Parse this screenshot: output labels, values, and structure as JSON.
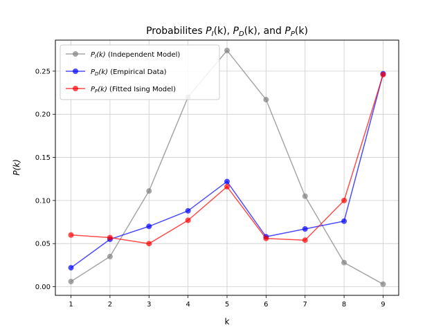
{
  "chart_data": {
    "type": "line",
    "title": "Probabilites P_I(k), P_D(k), and P_P(k)",
    "title_parts": {
      "prefix": "Probabilites ",
      "p1_sub": "I",
      "p1_suffix": "(k), ",
      "p2_sub": "D",
      "p2_suffix": "(k), and ",
      "p3_sub": "P",
      "p3_suffix": "(k)"
    },
    "xlabel": "k",
    "ylabel": "P(k)",
    "x": [
      1,
      2,
      3,
      4,
      5,
      6,
      7,
      8,
      9
    ],
    "xlim": [
      0.6,
      9.4
    ],
    "ylim": [
      -0.01,
      0.286
    ],
    "yticks": [
      0.0,
      0.05,
      0.1,
      0.15,
      0.2,
      0.25
    ],
    "ytick_labels": [
      "0.00",
      "0.05",
      "0.10",
      "0.15",
      "0.20",
      "0.25"
    ],
    "grid": true,
    "legend_position": "upper-left",
    "series": [
      {
        "name": "P_I(k) (Independent Model)",
        "label_sub": "I",
        "label_rest": " (Independent Model)",
        "color": "#808080",
        "values": [
          0.006,
          0.035,
          0.111,
          0.22,
          0.274,
          0.217,
          0.105,
          0.028,
          0.003
        ]
      },
      {
        "name": "P_D(k) (Empirical Data)",
        "label_sub": "D",
        "label_rest": " (Empirical Data)",
        "color": "#0000ff",
        "values": [
          0.022,
          0.055,
          0.07,
          0.088,
          0.122,
          0.058,
          0.067,
          0.076,
          0.247
        ]
      },
      {
        "name": "P_P(k) (Fitted Ising Model)",
        "label_sub": "P",
        "label_rest": " (Fitted Ising Model)",
        "color": "#ff0000",
        "values": [
          0.06,
          0.057,
          0.05,
          0.077,
          0.116,
          0.056,
          0.054,
          0.1,
          0.246
        ]
      }
    ]
  }
}
